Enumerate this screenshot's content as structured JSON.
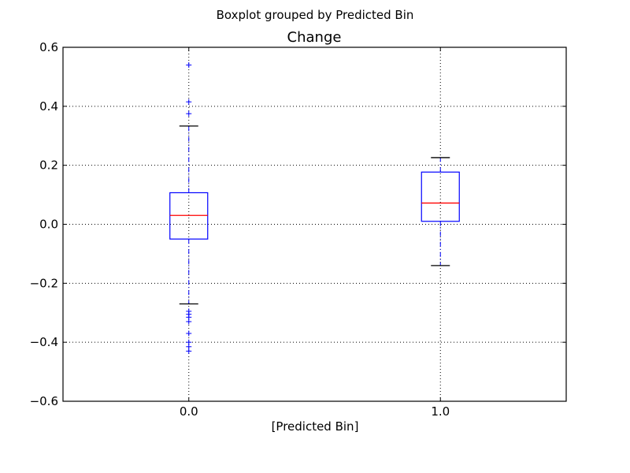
{
  "chart_data": {
    "type": "boxplot",
    "suptitle": "Boxplot grouped by Predicted Bin",
    "title": "Change",
    "xlabel": "[Predicted Bin]",
    "ylabel": "",
    "ylim": [
      -0.6,
      0.6
    ],
    "yticks": [
      -0.6,
      -0.4,
      -0.2,
      0.0,
      0.2,
      0.4,
      0.6
    ],
    "ytick_labels": [
      "−0.6",
      "−0.4",
      "−0.2",
      "0.0",
      "0.2",
      "0.4",
      "0.6"
    ],
    "categories": [
      "0.0",
      "1.0"
    ],
    "grid": true,
    "colors": {
      "box": "#0000ff",
      "median": "#ff0000",
      "whisker": "#0000ff",
      "cap": "#000000",
      "flier": "#0000ff",
      "grid": "#000000"
    },
    "boxes": [
      {
        "category": "0.0",
        "whisker_low": -0.27,
        "q1": -0.05,
        "median": 0.03,
        "q3": 0.107,
        "whisker_high": 0.333,
        "fliers": [
          0.54,
          0.415,
          0.375,
          -0.295,
          -0.305,
          -0.315,
          -0.33,
          -0.37,
          -0.4,
          -0.415,
          -0.43
        ]
      },
      {
        "category": "1.0",
        "whisker_low": -0.14,
        "q1": 0.01,
        "median": 0.072,
        "q3": 0.177,
        "whisker_high": 0.226,
        "fliers": []
      }
    ]
  }
}
